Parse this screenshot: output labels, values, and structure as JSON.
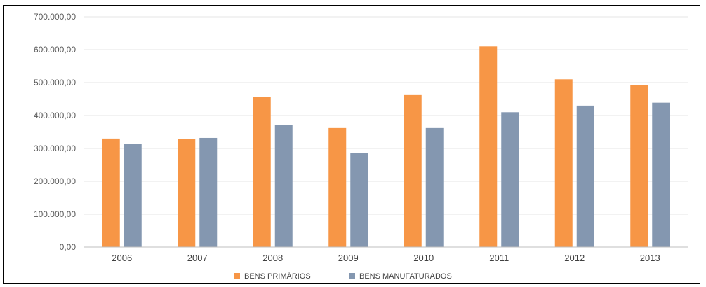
{
  "chart_data": {
    "type": "bar",
    "title": "",
    "xlabel": "",
    "ylabel": "",
    "categories": [
      "2006",
      "2007",
      "2008",
      "2009",
      "2010",
      "2011",
      "2012",
      "2013"
    ],
    "series": [
      {
        "name": "BENS PRIMÁRIOS",
        "color": "#F79646",
        "values": [
          330000,
          328000,
          457000,
          362000,
          462000,
          610000,
          510000,
          493000
        ]
      },
      {
        "name": "BENS MANUFATURADOS",
        "color": "#8497B0",
        "values": [
          313000,
          332000,
          372000,
          287000,
          362000,
          410000,
          430000,
          439000
        ]
      }
    ],
    "ylim": [
      0,
      700000
    ],
    "yticks": [
      0,
      100000,
      200000,
      300000,
      400000,
      500000,
      600000,
      700000
    ],
    "ytick_labels": [
      "0,00",
      "100.000,00",
      "200.000,00",
      "300.000,00",
      "400.000,00",
      "500.000,00",
      "600.000,00",
      "700.000,00"
    ],
    "grid": true,
    "legend_position": "bottom"
  }
}
